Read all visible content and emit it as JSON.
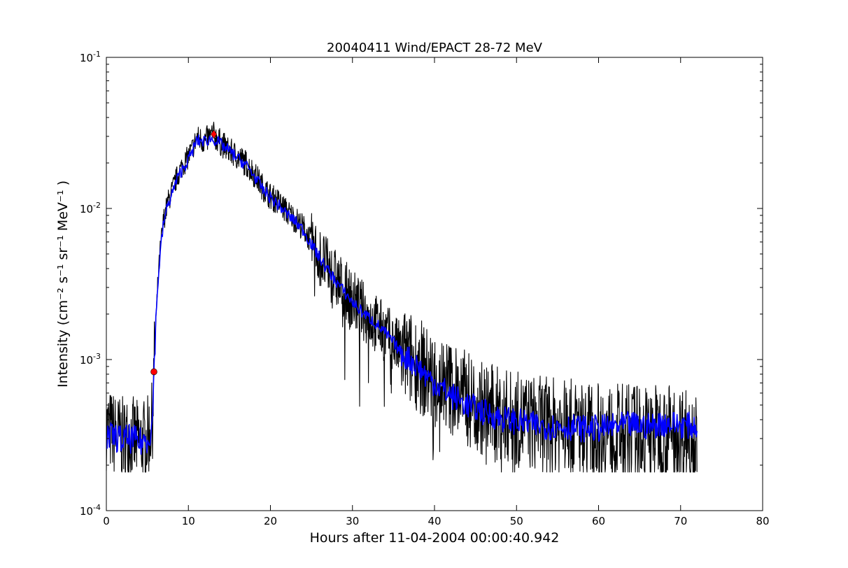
{
  "chart_data": {
    "type": "line",
    "title": "20040411 Wind/EPACT 28-72 MeV",
    "xlabel": "Hours after 11-04-2004 00:00:40.942",
    "ylabel": "Intensity (cm⁻² s⁻¹ sr⁻¹ MeV⁻¹ )",
    "xlim": [
      0,
      80
    ],
    "ylim": [
      0.0001,
      0.1
    ],
    "yscale": "log",
    "grid": false,
    "legend": "none",
    "x_ticks": [
      0,
      10,
      20,
      30,
      40,
      50,
      60,
      70,
      80
    ],
    "x_tick_labels": [
      "0",
      "10",
      "20",
      "30",
      "40",
      "50",
      "60",
      "70",
      "80"
    ],
    "y_ticks": [
      0.0001,
      0.001,
      0.01,
      0.1
    ],
    "y_tick_labels": [
      {
        "base": "10",
        "exp": "-4"
      },
      {
        "base": "10",
        "exp": "-3"
      },
      {
        "base": "10",
        "exp": "-2"
      },
      {
        "base": "10",
        "exp": "-1"
      }
    ],
    "series": [
      {
        "role": "raw",
        "color": "#000000",
        "x": [
          0.0,
          1.0,
          2.0,
          3.0,
          4.0,
          5.0,
          5.6,
          5.8,
          6.0,
          6.3,
          6.6,
          7.0,
          7.5,
          8.0,
          8.5,
          9.0,
          9.5,
          10.0,
          10.5,
          11.0,
          12.0,
          13.0,
          14.0,
          15.0,
          16.0,
          17.0,
          18.0,
          19.0,
          20.0,
          21.0,
          22.0,
          23.0,
          24.0,
          25.0,
          26.0,
          27.0,
          28.0,
          29.0,
          30.0,
          31.0,
          32.0,
          33.0,
          34.0,
          35.0,
          36.0,
          37.0,
          38.0,
          39.0,
          40.0,
          42.0,
          44.0,
          46.0,
          48.0,
          50.0,
          52.0,
          54.0,
          56.0,
          58.0,
          60.0,
          62.0,
          64.0,
          66.0,
          68.0,
          70.0,
          72.0
        ],
        "y": [
          0.00035,
          0.00032,
          0.0003,
          0.00031,
          0.00028,
          0.0003,
          0.00038,
          0.00083,
          0.0016,
          0.0033,
          0.0055,
          0.0085,
          0.011,
          0.013,
          0.0155,
          0.018,
          0.02,
          0.022,
          0.025,
          0.029,
          0.028,
          0.031,
          0.027,
          0.024,
          0.022,
          0.02,
          0.017,
          0.014,
          0.012,
          0.011,
          0.0095,
          0.0085,
          0.0075,
          0.006,
          0.0048,
          0.004,
          0.0034,
          0.0029,
          0.0025,
          0.0022,
          0.0019,
          0.0017,
          0.0015,
          0.0013,
          0.0011,
          0.001,
          0.00095,
          0.0008,
          0.00075,
          0.00065,
          0.00055,
          0.00047,
          0.00043,
          0.0004,
          0.00038,
          0.00037,
          0.00036,
          0.00035,
          0.00034,
          0.00033,
          0.00034,
          0.00033,
          0.00034,
          0.00033,
          0.00032
        ]
      },
      {
        "role": "smoothed",
        "color": "#0000ff",
        "x": [
          0.0,
          1.0,
          2.0,
          3.0,
          4.0,
          5.0,
          5.6,
          5.8,
          6.0,
          6.3,
          6.6,
          7.0,
          7.5,
          8.0,
          8.5,
          9.0,
          9.5,
          10.0,
          10.5,
          11.0,
          12.0,
          13.0,
          14.0,
          15.0,
          16.0,
          17.0,
          18.0,
          19.0,
          20.0,
          21.0,
          22.0,
          23.0,
          24.0,
          25.0,
          26.0,
          27.0,
          28.0,
          29.0,
          30.0,
          31.0,
          32.0,
          33.0,
          34.0,
          35.0,
          36.0,
          37.0,
          38.0,
          39.0,
          40.0,
          42.0,
          44.0,
          46.0,
          48.0,
          50.0,
          52.0,
          54.0,
          56.0,
          58.0,
          60.0,
          62.0,
          64.0,
          66.0,
          68.0,
          70.0,
          72.0
        ],
        "y": [
          0.0003,
          0.00031,
          0.00029,
          0.0003,
          0.00028,
          0.0003,
          0.00036,
          0.00083,
          0.0017,
          0.0033,
          0.0053,
          0.0082,
          0.0105,
          0.0125,
          0.015,
          0.0172,
          0.019,
          0.021,
          0.024,
          0.028,
          0.028,
          0.029,
          0.0265,
          0.024,
          0.0215,
          0.0195,
          0.0165,
          0.0135,
          0.0118,
          0.0105,
          0.0092,
          0.0082,
          0.0072,
          0.0058,
          0.0047,
          0.0039,
          0.0033,
          0.0028,
          0.0024,
          0.0021,
          0.0019,
          0.0017,
          0.0015,
          0.0013,
          0.0011,
          0.001,
          0.0009,
          0.00078,
          0.0007,
          0.00058,
          0.0005,
          0.00045,
          0.00041,
          0.00039,
          0.00037,
          0.00036,
          0.00036,
          0.00035,
          0.00035,
          0.00036,
          0.00037,
          0.00036,
          0.00038,
          0.00037,
          0.00036
        ]
      }
    ],
    "markers": [
      {
        "x": 5.8,
        "y": 0.00083,
        "color": "#ff0000",
        "shape": "circle"
      },
      {
        "x": 13.1,
        "y": 0.031,
        "color": "#ff0000",
        "shape": "diamond"
      }
    ]
  }
}
